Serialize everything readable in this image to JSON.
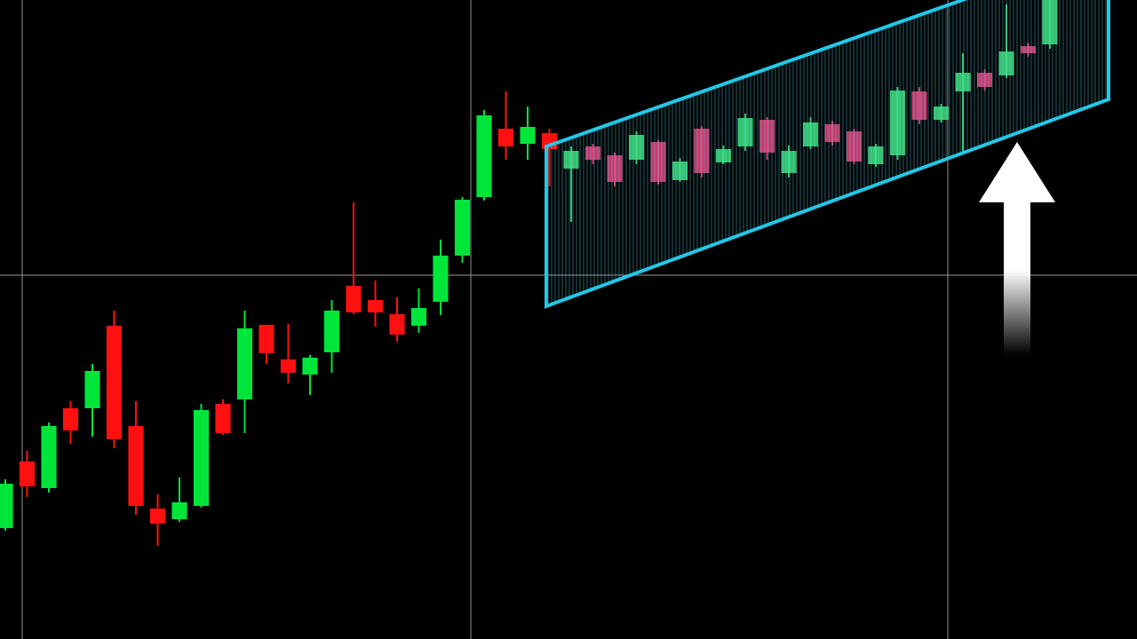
{
  "chart_data": {
    "type": "candlestick",
    "xlim": [
      -0.245,
      52
    ],
    "ylim": [
      0,
      720
    ],
    "series": [
      {
        "up_color": "#00e53a",
        "down_color": "#ff1010",
        "opacity": 1,
        "x": [
          0,
          1,
          2,
          3,
          4,
          5,
          6,
          7,
          8,
          9,
          10,
          11,
          12,
          13,
          14,
          15,
          16,
          17,
          18,
          19,
          20,
          21,
          22,
          23,
          24,
          25
        ],
        "open": [
          125,
          200,
          170,
          260,
          260,
          353,
          240,
          147,
          135,
          150,
          265,
          270,
          354,
          315,
          298,
          323,
          398,
          382,
          366,
          353,
          380,
          432,
          498,
          575,
          558,
          570
        ],
        "high": [
          180,
          212,
          244,
          268,
          310,
          370,
          268,
          163,
          182,
          265,
          270,
          370,
          354,
          355,
          320,
          382,
          492,
          404,
          385,
          395,
          450,
          498,
          596,
          617,
          600,
          575
        ],
        "low": [
          122,
          160,
          165,
          220,
          228,
          215,
          140,
          105,
          132,
          148,
          230,
          232,
          310,
          288,
          275,
          300,
          366,
          352,
          335,
          345,
          365,
          424,
          494,
          540,
          540,
          510
        ],
        "close": [
          175,
          172,
          240,
          235,
          302,
          225,
          150,
          130,
          154,
          258,
          232,
          350,
          322,
          300,
          317,
          370,
          368,
          368,
          343,
          373,
          432,
          495,
          590,
          555,
          577,
          552
        ]
      },
      {
        "up_color": "#3fe27c",
        "down_color": "#e8427c",
        "opacity": 0.85,
        "x": [
          26,
          27,
          28,
          29,
          30,
          31,
          32,
          33,
          34,
          35,
          36,
          37,
          38,
          39,
          40,
          41,
          42,
          43,
          44,
          45,
          46,
          47,
          48
        ],
        "open": [
          530,
          555,
          545,
          540,
          560,
          517,
          575,
          537,
          555,
          585,
          525,
          555,
          580,
          572,
          535,
          545,
          617,
          585,
          617,
          638,
          635,
          668,
          670
        ],
        "high": [
          555,
          558,
          548,
          572,
          562,
          542,
          578,
          556,
          592,
          588,
          556,
          588,
          584,
          575,
          558,
          622,
          622,
          603,
          660,
          642,
          715,
          672,
          720
        ],
        "low": [
          470,
          535,
          510,
          535,
          512,
          515,
          520,
          535,
          550,
          540,
          520,
          552,
          556,
          535,
          532,
          540,
          580,
          582,
          548,
          618,
          632,
          656,
          665
        ],
        "close": [
          550,
          540,
          515,
          568,
          515,
          538,
          525,
          552,
          587,
          548,
          550,
          582,
          560,
          538,
          555,
          618,
          585,
          600,
          638,
          622,
          662,
          660,
          720
        ]
      }
    ]
  }
}
